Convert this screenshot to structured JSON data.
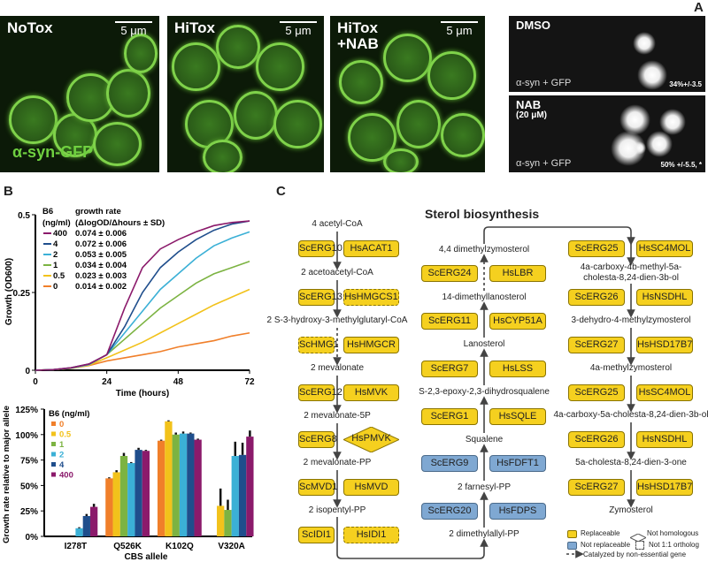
{
  "panel_a": {
    "label": "A",
    "images": [
      {
        "title": "NoTox",
        "scale": "5 μm",
        "caption": "α-syn-GFP"
      },
      {
        "title": "HiTox",
        "scale": "5 μm"
      },
      {
        "title": "HiTox\n+NAB",
        "scale": "5 μm"
      }
    ],
    "neurons": [
      {
        "title": "DMSO",
        "caption": "α-syn + GFP",
        "stat": "34%+/-3.5"
      },
      {
        "title": "NAB",
        "subtitle": "(20 μM)",
        "caption": "α-syn + GFP",
        "stat": "50% +/-5.5, *"
      }
    ],
    "colors": {
      "gfp": "#7fd24a"
    }
  },
  "panel_b": {
    "label": "B"
  },
  "chart_data": [
    {
      "type": "line",
      "xlabel": "Time (hours)",
      "ylabel": "Growth (OD600)",
      "xlim": [
        0,
        72
      ],
      "ylim": [
        0,
        0.5
      ],
      "xticks": [
        "0",
        "24",
        "48",
        "72"
      ],
      "yticks": [
        "0",
        "0.25",
        "0.5"
      ],
      "legend_header": [
        "B6",
        "(ng/ml)",
        "growth rate",
        "(ΔlogOD/Δhours ± SD)"
      ],
      "legend_placement": "top-left",
      "x": [
        0,
        6,
        12,
        18,
        24,
        30,
        36,
        42,
        48,
        54,
        60,
        66,
        72
      ],
      "series": [
        {
          "name": "400",
          "rate": "0.074 ± 0.006",
          "color": "#8b1a6b",
          "values": [
            0,
            0.002,
            0.008,
            0.02,
            0.05,
            0.2,
            0.33,
            0.39,
            0.42,
            0.445,
            0.465,
            0.475,
            0.48
          ]
        },
        {
          "name": "4",
          "rate": "0.072 ± 0.006",
          "color": "#1f4e8c",
          "values": [
            0,
            0.002,
            0.008,
            0.02,
            0.05,
            0.14,
            0.25,
            0.33,
            0.38,
            0.42,
            0.45,
            0.47,
            0.48
          ]
        },
        {
          "name": "2",
          "rate": "0.053 ± 0.005",
          "color": "#3bb0d6",
          "values": [
            0,
            0.002,
            0.007,
            0.018,
            0.05,
            0.12,
            0.19,
            0.26,
            0.31,
            0.36,
            0.4,
            0.425,
            0.445
          ]
        },
        {
          "name": "1",
          "rate": "0.034 ± 0.004",
          "color": "#7cb342",
          "values": [
            0,
            0.002,
            0.007,
            0.018,
            0.05,
            0.1,
            0.15,
            0.2,
            0.24,
            0.28,
            0.31,
            0.33,
            0.35
          ]
        },
        {
          "name": "0.5",
          "rate": "0.023 ± 0.003",
          "color": "#f2c21b",
          "values": [
            0,
            0.002,
            0.006,
            0.016,
            0.04,
            0.065,
            0.09,
            0.12,
            0.15,
            0.18,
            0.21,
            0.235,
            0.26
          ]
        },
        {
          "name": "0",
          "rate": "0.014 ± 0.002",
          "color": "#f07f2a",
          "values": [
            0,
            0.002,
            0.006,
            0.015,
            0.03,
            0.04,
            0.05,
            0.06,
            0.075,
            0.085,
            0.095,
            0.11,
            0.12
          ]
        }
      ]
    },
    {
      "type": "bar",
      "xlabel": "CBS allele",
      "ylabel": "Growth rate relative to major allele",
      "ylim": [
        0,
        125
      ],
      "yticks": [
        "0%",
        "25%",
        "50%",
        "75%",
        "100%",
        "125%"
      ],
      "legend_title": "B6 (ng/ml)",
      "legend_placement": "top-left",
      "categories": [
        "I278T",
        "Q526K",
        "K102Q",
        "V320A"
      ],
      "series": [
        {
          "name": "0",
          "color": "#f07f2a",
          "values": [
            0,
            57,
            94,
            0
          ],
          "err": [
            0,
            1,
            1,
            0
          ]
        },
        {
          "name": "0.5",
          "color": "#f2c21b",
          "values": [
            0,
            63,
            113,
            30
          ],
          "err": [
            0,
            2,
            1,
            17
          ]
        },
        {
          "name": "1",
          "color": "#7cb342",
          "values": [
            0,
            79,
            100,
            26
          ],
          "err": [
            0,
            3,
            2,
            10
          ]
        },
        {
          "name": "2",
          "color": "#3bb0d6",
          "values": [
            8,
            72,
            101,
            79
          ],
          "err": [
            1,
            1,
            2,
            14
          ]
        },
        {
          "name": "4",
          "color": "#1f4e8c",
          "values": [
            20,
            85,
            101,
            80
          ],
          "err": [
            2,
            2,
            1,
            12
          ]
        },
        {
          "name": "400",
          "color": "#8b1a6b",
          "values": [
            29,
            84,
            95,
            98
          ],
          "err": [
            3,
            1,
            1,
            6
          ]
        }
      ]
    }
  ],
  "panel_c": {
    "label": "C",
    "title": "Sterol biosynthesis",
    "left_metabolites": [
      "4 acetyl-CoA",
      "2 acetoacetyl-CoA",
      "2 S-3-hydroxy-3-methylglutaryl-CoA",
      "2 mevalonate",
      "2 mevalonate-5P",
      "2 mevalonate-PP",
      "2 isopentyl-PP"
    ],
    "left_enzymes": [
      {
        "sc": "ScERG10",
        "hs": "HsACAT1",
        "sc_type": "replaceable",
        "hs_type": "replaceable"
      },
      {
        "sc": "ScERG13",
        "hs": "HsHMGCS1",
        "sc_type": "replaceable",
        "hs_type": "not-1to1"
      },
      {
        "sc": "ScHMG1",
        "hs": "HsHMGCR",
        "sc_type": "not-1to1",
        "hs_type": "replaceable",
        "nonessential": true
      },
      {
        "sc": "ScERG12",
        "hs": "HsMVK",
        "sc_type": "replaceable",
        "hs_type": "replaceable"
      },
      {
        "sc": "ScERG8",
        "hs": "HsPMVK",
        "sc_type": "replaceable",
        "hs_type": "not-homologous"
      },
      {
        "sc": "ScMVD1",
        "hs": "HsMVD",
        "sc_type": "replaceable",
        "hs_type": "replaceable"
      },
      {
        "sc": "ScIDI1",
        "hs": "HsIDI1",
        "sc_type": "replaceable",
        "hs_type": "not-1to1"
      }
    ],
    "mid_metabolites": [
      "4,4 dimethylzymosterol",
      "14-dimethyllanosterol",
      "Lanosterol",
      "S-2,3-epoxy-2,3-dihydrosqualene",
      "Squalene",
      "2 farnesyl-PP",
      "2 dimethylallyl-PP"
    ],
    "mid_enzymes": [
      {
        "sc": "ScERG24",
        "hs": "HsLBR",
        "sc_type": "replaceable",
        "hs_type": "replaceable",
        "nonessential": true
      },
      {
        "sc": "ScERG11",
        "hs": "HsCYP51A",
        "sc_type": "replaceable",
        "hs_type": "replaceable"
      },
      {
        "sc": "ScERG7",
        "hs": "HsLSS",
        "sc_type": "replaceable",
        "hs_type": "replaceable"
      },
      {
        "sc": "ScERG1",
        "hs": "HsSQLE",
        "sc_type": "replaceable",
        "hs_type": "replaceable"
      },
      {
        "sc": "ScERG9",
        "hs": "HsFDFT1",
        "sc_type": "not-replaceable",
        "hs_type": "not-replaceable"
      },
      {
        "sc": "ScERG20",
        "hs": "HsFDPS",
        "sc_type": "not-replaceable",
        "hs_type": "not-replaceable"
      }
    ],
    "right_metabolites": [
      "4a-carboxy-4b-methyl-5a-\ncholesta-8,24-dien-3b-ol",
      "3-dehydro-4-methylzymosterol",
      "4a-methylzymosterol",
      "4a-carboxy-5a-cholesta-8,24-dien-3b-ol",
      "5a-cholesta-8,24-dien-3-one",
      "Zymosterol"
    ],
    "right_enzymes": [
      {
        "sc": "ScERG25",
        "hs": "HsSC4MOL",
        "sc_type": "replaceable",
        "hs_type": "replaceable"
      },
      {
        "sc": "ScERG26",
        "hs": "HsNSDHL",
        "sc_type": "replaceable",
        "hs_type": "replaceable"
      },
      {
        "sc": "ScERG27",
        "hs": "HsHSD17B7",
        "sc_type": "replaceable",
        "hs_type": "replaceable"
      },
      {
        "sc": "ScERG25",
        "hs": "HsSC4MOL",
        "sc_type": "replaceable",
        "hs_type": "replaceable"
      },
      {
        "sc": "ScERG26",
        "hs": "HsNSDHL",
        "sc_type": "replaceable",
        "hs_type": "replaceable"
      },
      {
        "sc": "ScERG27",
        "hs": "HsHSD17B7",
        "sc_type": "replaceable",
        "hs_type": "replaceable"
      }
    ],
    "legend": {
      "replaceable": "Replaceable",
      "not_replaceable": "Not replaceable",
      "not_homologous": "Not homologous",
      "not_1to1": "Not 1:1 ortholog",
      "nonessential": "Catalyzed by non-essential gene"
    },
    "colors": {
      "replaceable": "#f5d01f",
      "not_replaceable": "#7fa8d2"
    }
  }
}
